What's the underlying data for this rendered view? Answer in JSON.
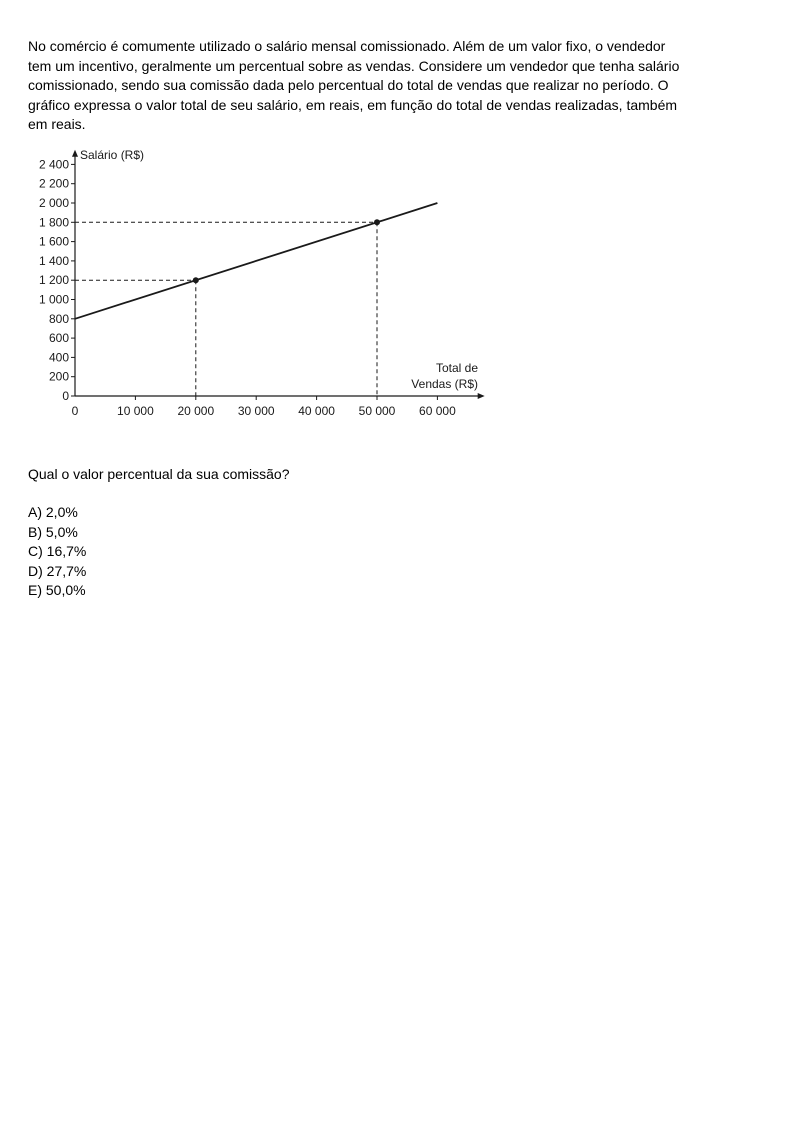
{
  "question": {
    "paragraph_lines": [
      "No comércio é comumente utilizado o salário mensal comissionado. Além de um valor fixo, o vendedor",
      "tem um incentivo, geralmente um percentual sobre as vendas. Considere um vendedor que tenha salário",
      "comissionado, sendo sua comissão dada pelo percentual do total de vendas que realizar no período. O",
      "gráfico expressa o valor total de seu salário, em reais, em função do total de vendas realizadas, também",
      "em reais."
    ],
    "prompt": "Qual o valor percentual da sua comissão?",
    "options": [
      {
        "letter": "A)",
        "text": "2,0%"
      },
      {
        "letter": "B)",
        "text": "5,0%"
      },
      {
        "letter": "C)",
        "text": "16,7%"
      },
      {
        "letter": "D)",
        "text": "27,7%"
      },
      {
        "letter": "E)",
        "text": "50,0%"
      }
    ]
  },
  "chart_data": {
    "type": "line",
    "ylabel": "Salário (R$)",
    "xlabel_lines": [
      "Total de",
      "Vendas (R$)"
    ],
    "x_ticks": [
      0,
      10000,
      20000,
      30000,
      40000,
      50000,
      60000
    ],
    "x_tick_labels": [
      "0",
      "10 000",
      "20 000",
      "30 000",
      "40 000",
      "50 000",
      "60 000"
    ],
    "y_ticks": [
      0,
      200,
      400,
      600,
      800,
      1000,
      1200,
      1400,
      1600,
      1800,
      2000,
      2200,
      2400
    ],
    "y_tick_labels": [
      "0",
      "200",
      "400",
      "600",
      "800",
      "1 000",
      "1 200",
      "1 400",
      "1 600",
      "1 800",
      "2 000",
      "2 200",
      "2 400"
    ],
    "xlim": [
      0,
      67000
    ],
    "ylim": [
      0,
      2500
    ],
    "series": [
      {
        "x": [
          0,
          60000
        ],
        "y": [
          800,
          2000
        ]
      }
    ],
    "marked_points": [
      {
        "x": 20000,
        "y": 1200
      },
      {
        "x": 50000,
        "y": 1800
      }
    ],
    "grid": false,
    "line_color": "#1a1a1a"
  }
}
